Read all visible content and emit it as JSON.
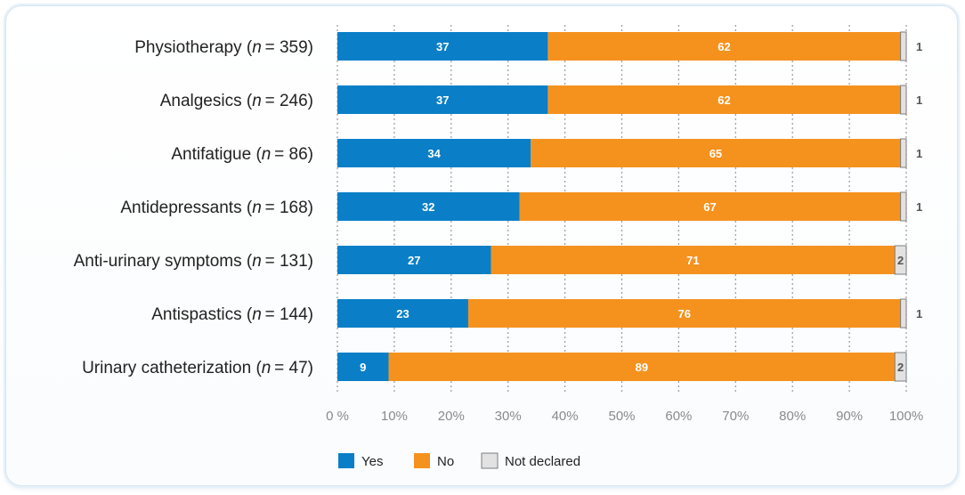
{
  "chart_data": {
    "type": "bar",
    "orientation": "horizontal",
    "stacked": true,
    "categories": [
      {
        "name": "Physiotherapy",
        "n": "359"
      },
      {
        "name": "Analgesics",
        "n": "246"
      },
      {
        "name": "Antifatigue",
        "n": "86"
      },
      {
        "name": "Antidepressants",
        "n": "168"
      },
      {
        "name": "Anti-urinary symptoms",
        "n": "131"
      },
      {
        "name": "Antispastics",
        "n": "144"
      },
      {
        "name": "Urinary catheterization",
        "n": "47"
      }
    ],
    "series": [
      {
        "name": "Yes",
        "color": "#0a7fc8",
        "values": [
          37,
          37,
          34,
          32,
          27,
          23,
          9
        ]
      },
      {
        "name": "No",
        "color": "#f5921e",
        "values": [
          62,
          62,
          65,
          67,
          71,
          76,
          89
        ]
      },
      {
        "name": "Not declared",
        "color": "#e2e2e2",
        "values": [
          1,
          1,
          1,
          1,
          2,
          1,
          2
        ]
      }
    ],
    "xlim": [
      0,
      100
    ],
    "xticks": [
      "0 %",
      "10%",
      "20%",
      "30%",
      "40%",
      "50%",
      "60%",
      "70%",
      "80%",
      "90%",
      "100%"
    ],
    "grid": "vertical dotted",
    "legend_position": "bottom"
  }
}
